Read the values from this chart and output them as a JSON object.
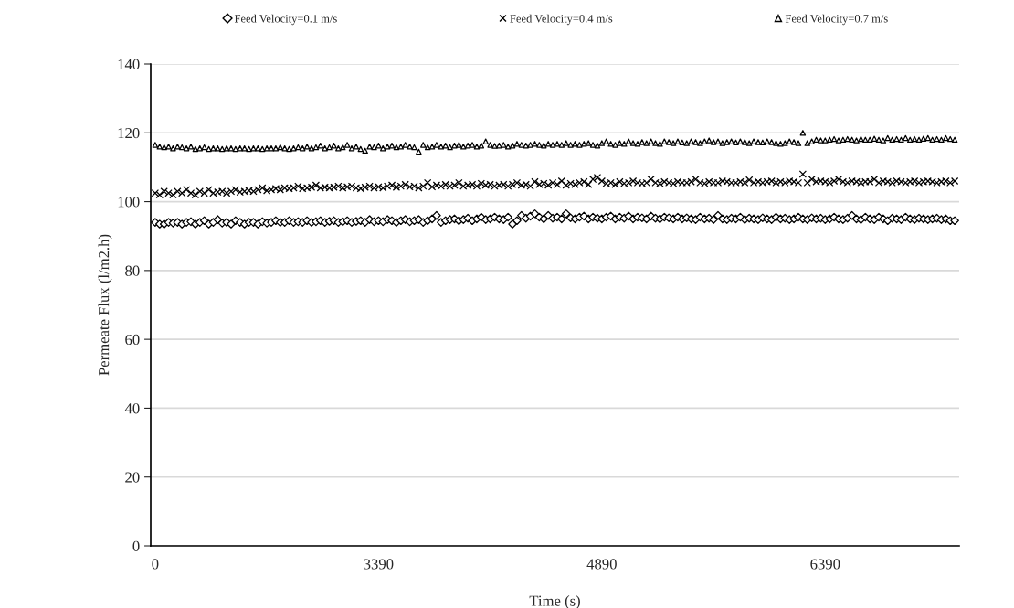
{
  "chart_data": {
    "type": "scatter",
    "xlabel": "Time (s)",
    "ylabel": "Permeate Flux (l/m2.h)",
    "categories": [
      "0",
      null,
      null,
      null,
      null,
      null,
      null,
      null,
      null,
      null,
      null,
      null,
      null,
      null,
      null,
      null,
      null,
      null,
      null,
      null,
      null,
      null,
      null,
      null,
      null,
      null,
      null,
      null,
      null,
      null,
      null,
      null,
      null,
      null,
      null,
      null,
      null,
      null,
      null,
      null,
      null,
      null,
      null,
      null,
      null,
      null,
      null,
      null,
      null,
      null,
      "3390",
      null,
      null,
      null,
      null,
      null,
      null,
      null,
      null,
      null,
      null,
      null,
      null,
      null,
      null,
      null,
      null,
      null,
      null,
      null,
      null,
      null,
      null,
      null,
      null,
      null,
      null,
      null,
      null,
      null,
      null,
      null,
      null,
      null,
      null,
      null,
      null,
      null,
      null,
      null,
      null,
      null,
      null,
      null,
      null,
      null,
      null,
      null,
      null,
      null,
      "4890",
      null,
      null,
      null,
      null,
      null,
      null,
      null,
      null,
      null,
      null,
      null,
      null,
      null,
      null,
      null,
      null,
      null,
      null,
      null,
      null,
      null,
      null,
      null,
      null,
      null,
      null,
      null,
      null,
      null,
      null,
      null,
      null,
      null,
      null,
      null,
      null,
      null,
      null,
      null,
      null,
      null,
      null,
      null,
      null,
      null,
      null,
      null,
      null,
      null,
      "6390",
      null,
      null,
      null,
      null,
      null,
      null,
      null,
      null,
      null,
      null,
      null,
      null,
      null,
      null,
      null,
      null,
      null,
      null,
      null,
      null,
      null,
      null,
      null,
      null,
      null,
      null,
      null,
      null,
      null
    ],
    "ylim": [
      0,
      140
    ],
    "yticks": [
      0,
      20,
      40,
      60,
      80,
      100,
      120,
      140
    ],
    "grid": "y",
    "legend": "top",
    "series": [
      {
        "name": "Feed Velocity=0.1 m/s",
        "color": "#000000",
        "marker": "diamond",
        "values": [
          94,
          93.5,
          93.5,
          94,
          93.8,
          94,
          93.5,
          94,
          94.2,
          93.5,
          94,
          94.5,
          93.5,
          94,
          94.8,
          93.8,
          94,
          93.5,
          94.5,
          94,
          93.5,
          94,
          94,
          93.5,
          94.2,
          93.8,
          94,
          94.5,
          94,
          94,
          94.5,
          94,
          94.2,
          94,
          94.5,
          94,
          94.2,
          94.5,
          94,
          94.3,
          94.5,
          94,
          94.2,
          94.5,
          94,
          94.3,
          94.5,
          94,
          94.8,
          94.2,
          94.5,
          94.2,
          94.8,
          94.5,
          94,
          94.5,
          94.8,
          94.2,
          94.5,
          94.8,
          94,
          94.5,
          95,
          96,
          94,
          94.5,
          94.8,
          95,
          94.5,
          94.8,
          95.2,
          94.5,
          95,
          95.5,
          94.8,
          95,
          95.5,
          95,
          94.8,
          95.5,
          93.5,
          94.5,
          96,
          95.2,
          95.8,
          96.5,
          95.5,
          95,
          96,
          95.2,
          95.5,
          95,
          96.5,
          95.3,
          95,
          95.5,
          95.8,
          95,
          95.5,
          95.2,
          95,
          95.5,
          95.8,
          95,
          95.5,
          95.2,
          95.8,
          95,
          95.5,
          95.3,
          95,
          95.8,
          95.2,
          95,
          95.5,
          95.3,
          95,
          95.5,
          95,
          95.3,
          95,
          94.8,
          95.5,
          95,
          95.2,
          94.8,
          96,
          95,
          94.8,
          95.2,
          95,
          95.5,
          94.8,
          95.2,
          95,
          94.8,
          95.3,
          95,
          94.8,
          95.5,
          95,
          95.2,
          94.8,
          95,
          95.5,
          95,
          94.8,
          95.3,
          95,
          95.2,
          94.8,
          95,
          95.5,
          95,
          94.8,
          95.2,
          96,
          95,
          94.8,
          95.5,
          95,
          94.8,
          95.5,
          95,
          94.5,
          95.2,
          95,
          94.8,
          95.5,
          95,
          94.8,
          95.2,
          95,
          94.8,
          95,
          95.2,
          94.8,
          95,
          94.5,
          94.5
        ]
      },
      {
        "name": "Feed Velocity=0.4 m/s",
        "color": "#000000",
        "marker": "cross",
        "values": [
          102.5,
          102,
          103,
          102.5,
          102,
          103,
          102.5,
          103.5,
          102.5,
          102,
          103,
          102.5,
          103.5,
          102.5,
          102.8,
          103,
          102.5,
          103,
          103.5,
          102.8,
          103,
          103.2,
          103,
          103.5,
          104,
          103.2,
          103.5,
          103.8,
          103.5,
          104,
          103.8,
          104,
          104.5,
          103.8,
          104,
          104.2,
          104.8,
          104,
          104.2,
          104,
          104.2,
          104.5,
          104,
          104.3,
          104.5,
          104,
          103.8,
          104.2,
          104.5,
          104,
          104.3,
          104,
          104.5,
          104.8,
          104.2,
          104.5,
          105,
          104.3,
          104.5,
          104,
          104.5,
          105.5,
          104.3,
          104.8,
          104.5,
          105,
          104.5,
          104.8,
          105.5,
          104.5,
          104.8,
          105,
          104.5,
          105.3,
          104.8,
          105,
          104.5,
          104.8,
          105,
          104.5,
          105,
          105.5,
          104.8,
          105,
          104.5,
          105.8,
          105,
          105.3,
          104.8,
          105.5,
          105,
          106,
          104.8,
          105.3,
          105,
          105.5,
          105.8,
          105,
          106.5,
          107,
          106,
          105.3,
          105.5,
          105,
          105.8,
          105.3,
          105.5,
          106,
          105.5,
          105.3,
          105.5,
          106.5,
          105.5,
          105.3,
          105.8,
          105.5,
          105.3,
          105.8,
          105.5,
          105.5,
          105.8,
          106.5,
          105.5,
          105.3,
          105.8,
          105.5,
          105.5,
          106,
          105.8,
          105.5,
          105.5,
          105.8,
          105.5,
          106.3,
          105.5,
          105.8,
          105.5,
          105.8,
          106,
          105.5,
          105.8,
          105.5,
          106,
          105.8,
          105.5,
          108,
          105.5,
          106.5,
          105.8,
          106,
          105.8,
          105.5,
          106,
          106.5,
          105.8,
          105.5,
          106,
          105.8,
          105.5,
          105.8,
          105.8,
          106.5,
          105.5,
          106,
          105.8,
          105.5,
          106,
          105.8,
          105.5,
          105.8,
          106,
          105.5,
          105.8,
          106,
          105.8,
          105.5,
          105.8,
          106,
          105.5,
          106
        ]
      },
      {
        "name": "Feed Velocity=0.7 m/s",
        "color": "#000000",
        "marker": "triangle",
        "values": [
          116.5,
          116,
          115.8,
          116,
          115.5,
          116,
          115.8,
          115.5,
          116,
          115.3,
          115.5,
          115.8,
          115.3,
          115.5,
          115.5,
          115.3,
          115.5,
          115.5,
          115.3,
          115.5,
          115.5,
          115.3,
          115.5,
          115.5,
          115.3,
          115.5,
          115.5,
          115.5,
          115.8,
          115.5,
          115.3,
          115.5,
          115.8,
          115.5,
          116,
          115.5,
          115.8,
          116.3,
          115.5,
          115.8,
          116.3,
          115.5,
          115.8,
          116.5,
          115.5,
          116,
          115.3,
          114.8,
          116,
          115.8,
          116.3,
          115.5,
          116,
          116.3,
          115.8,
          116,
          116.5,
          116,
          115.8,
          114.5,
          116.5,
          115.8,
          116,
          116.5,
          116,
          116.3,
          115.8,
          116.3,
          116.5,
          116,
          116.3,
          116.5,
          116,
          116.3,
          117.5,
          116.5,
          116.2,
          116.3,
          116.5,
          116,
          116.3,
          116.8,
          116.5,
          116.3,
          116.5,
          116.8,
          116.5,
          116.3,
          116.8,
          116.5,
          116.8,
          116.5,
          117,
          116.5,
          116.8,
          116.5,
          116.8,
          117,
          116.5,
          116.3,
          117,
          117.5,
          116.8,
          116.5,
          117,
          116.8,
          117.5,
          117,
          116.8,
          117.3,
          117,
          117.5,
          117,
          116.8,
          117.5,
          117.3,
          117,
          117.5,
          117.2,
          117,
          117.5,
          117.3,
          117,
          117.5,
          117.8,
          117.3,
          117.5,
          117,
          117.3,
          117.5,
          117.2,
          117.5,
          117.3,
          117,
          117.5,
          117.3,
          117.2,
          117.5,
          117.3,
          117,
          116.8,
          117,
          117.5,
          117.3,
          117,
          120,
          117,
          117.5,
          118,
          117.8,
          117.8,
          118,
          118.2,
          117.8,
          118,
          118.2,
          118,
          117.8,
          118.2,
          118,
          118,
          118.3,
          118,
          117.8,
          118.5,
          118,
          118.2,
          118,
          118.5,
          118,
          118.2,
          118,
          118.3,
          118.5,
          118,
          118.2,
          118,
          118.5,
          118.2,
          118
        ]
      }
    ]
  }
}
